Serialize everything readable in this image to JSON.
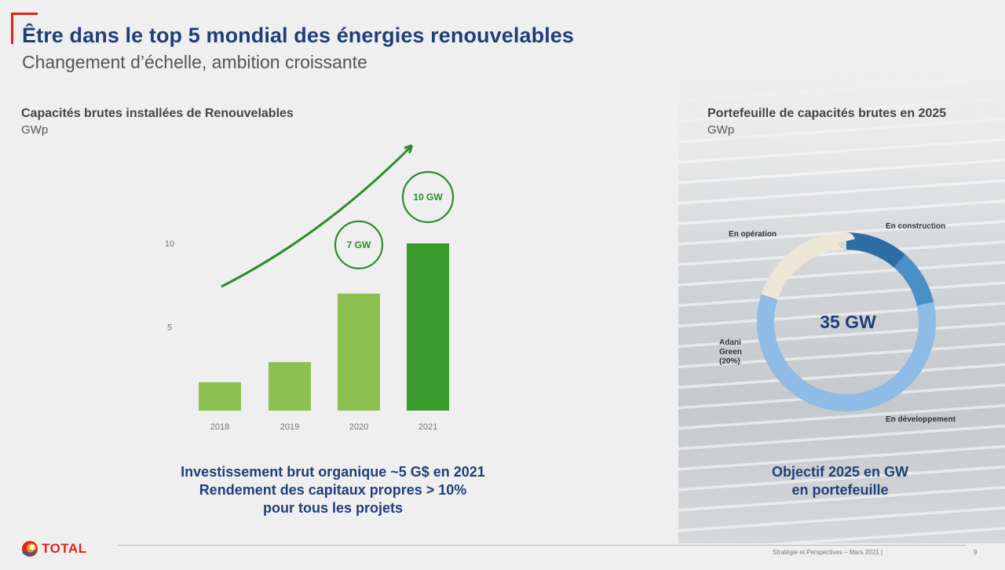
{
  "header": {
    "title": "Être dans le top 5 mondial des énergies renouvelables",
    "subtitle": "Changement d’échelle, ambition croissante"
  },
  "chart_data": [
    {
      "type": "bar",
      "title": "Capacités brutes installées de Renouvelables",
      "ylabel": "GWp",
      "categories": [
        "2018",
        "2019",
        "2020",
        "2021"
      ],
      "values": [
        1.7,
        2.9,
        7,
        10
      ],
      "ylim": [
        0,
        10
      ],
      "yticks": [
        "5",
        "10"
      ],
      "highlight_labels": [
        "7 GW",
        "10 GW"
      ],
      "bar_colors": [
        "#8cc152",
        "#8cc152",
        "#8cc152",
        "#3a9b2d"
      ],
      "annotation_color": "#2e8b2e"
    },
    {
      "type": "pie",
      "title": "Portefeuille de capacités brutes en 2025",
      "ylabel": "GWp",
      "center_label": "35 GW",
      "slices": [
        {
          "label": "En opération",
          "value": 4,
          "color": "#2e6da4"
        },
        {
          "label": "En construction",
          "value": 3.5,
          "color": "#4a90c8"
        },
        {
          "label": "En développement",
          "value": 20.5,
          "color": "#8fbce6"
        },
        {
          "label": "Adani Green (20%)",
          "value": 7,
          "color": "#eee6d6"
        }
      ]
    }
  ],
  "summary_lines": [
    "Investissement brut organique ~5 G$ en 2021",
    "Rendement des capitaux propres > 10%",
    "pour tous les projets"
  ],
  "objective_lines": [
    "Objectif 2025 en GW",
    "en portefeuille"
  ],
  "footer": {
    "brand": "TOTAL",
    "text": "Stratégie et Perspectives – Mars 2021 |",
    "page": "9"
  }
}
